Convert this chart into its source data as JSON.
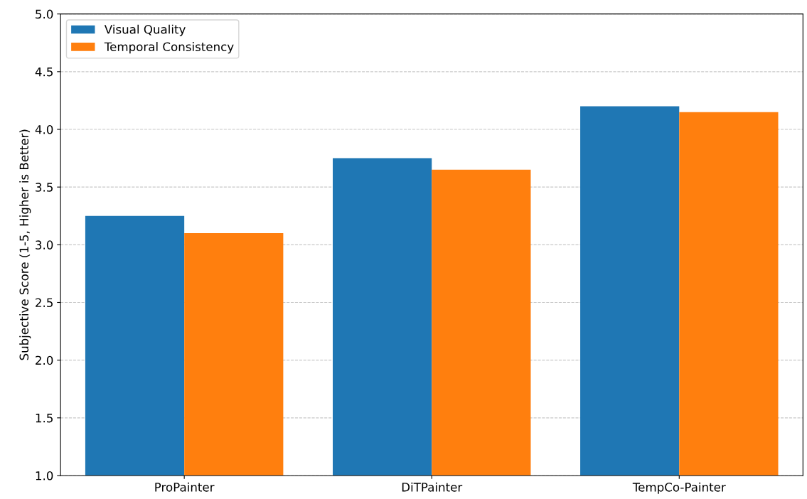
{
  "chart_data": {
    "type": "bar",
    "ylabel": "Subjective Score (1-5, Higher is Better)",
    "categories": [
      "ProPainter",
      "DiTPainter",
      "TempCo-Painter"
    ],
    "series": [
      {
        "name": "Visual Quality",
        "color": "#1f77b4",
        "values": [
          3.25,
          3.75,
          4.2
        ]
      },
      {
        "name": "Temporal Consistency",
        "color": "#ff7f0e",
        "values": [
          3.1,
          3.65,
          4.15
        ]
      }
    ],
    "ylim": [
      1,
      5
    ],
    "yticks": [
      {
        "value": 1,
        "label": "1.0"
      },
      {
        "value": 1.5,
        "label": "1.5"
      },
      {
        "value": 2,
        "label": "2.0"
      },
      {
        "value": 2.5,
        "label": "2.5"
      },
      {
        "value": 3,
        "label": "3.0"
      },
      {
        "value": 3.5,
        "label": "3.5"
      },
      {
        "value": 4,
        "label": "4.0"
      },
      {
        "value": 4.5,
        "label": "4.5"
      },
      {
        "value": 5,
        "label": "5.0"
      }
    ],
    "grid": "y",
    "legend": "top left"
  }
}
